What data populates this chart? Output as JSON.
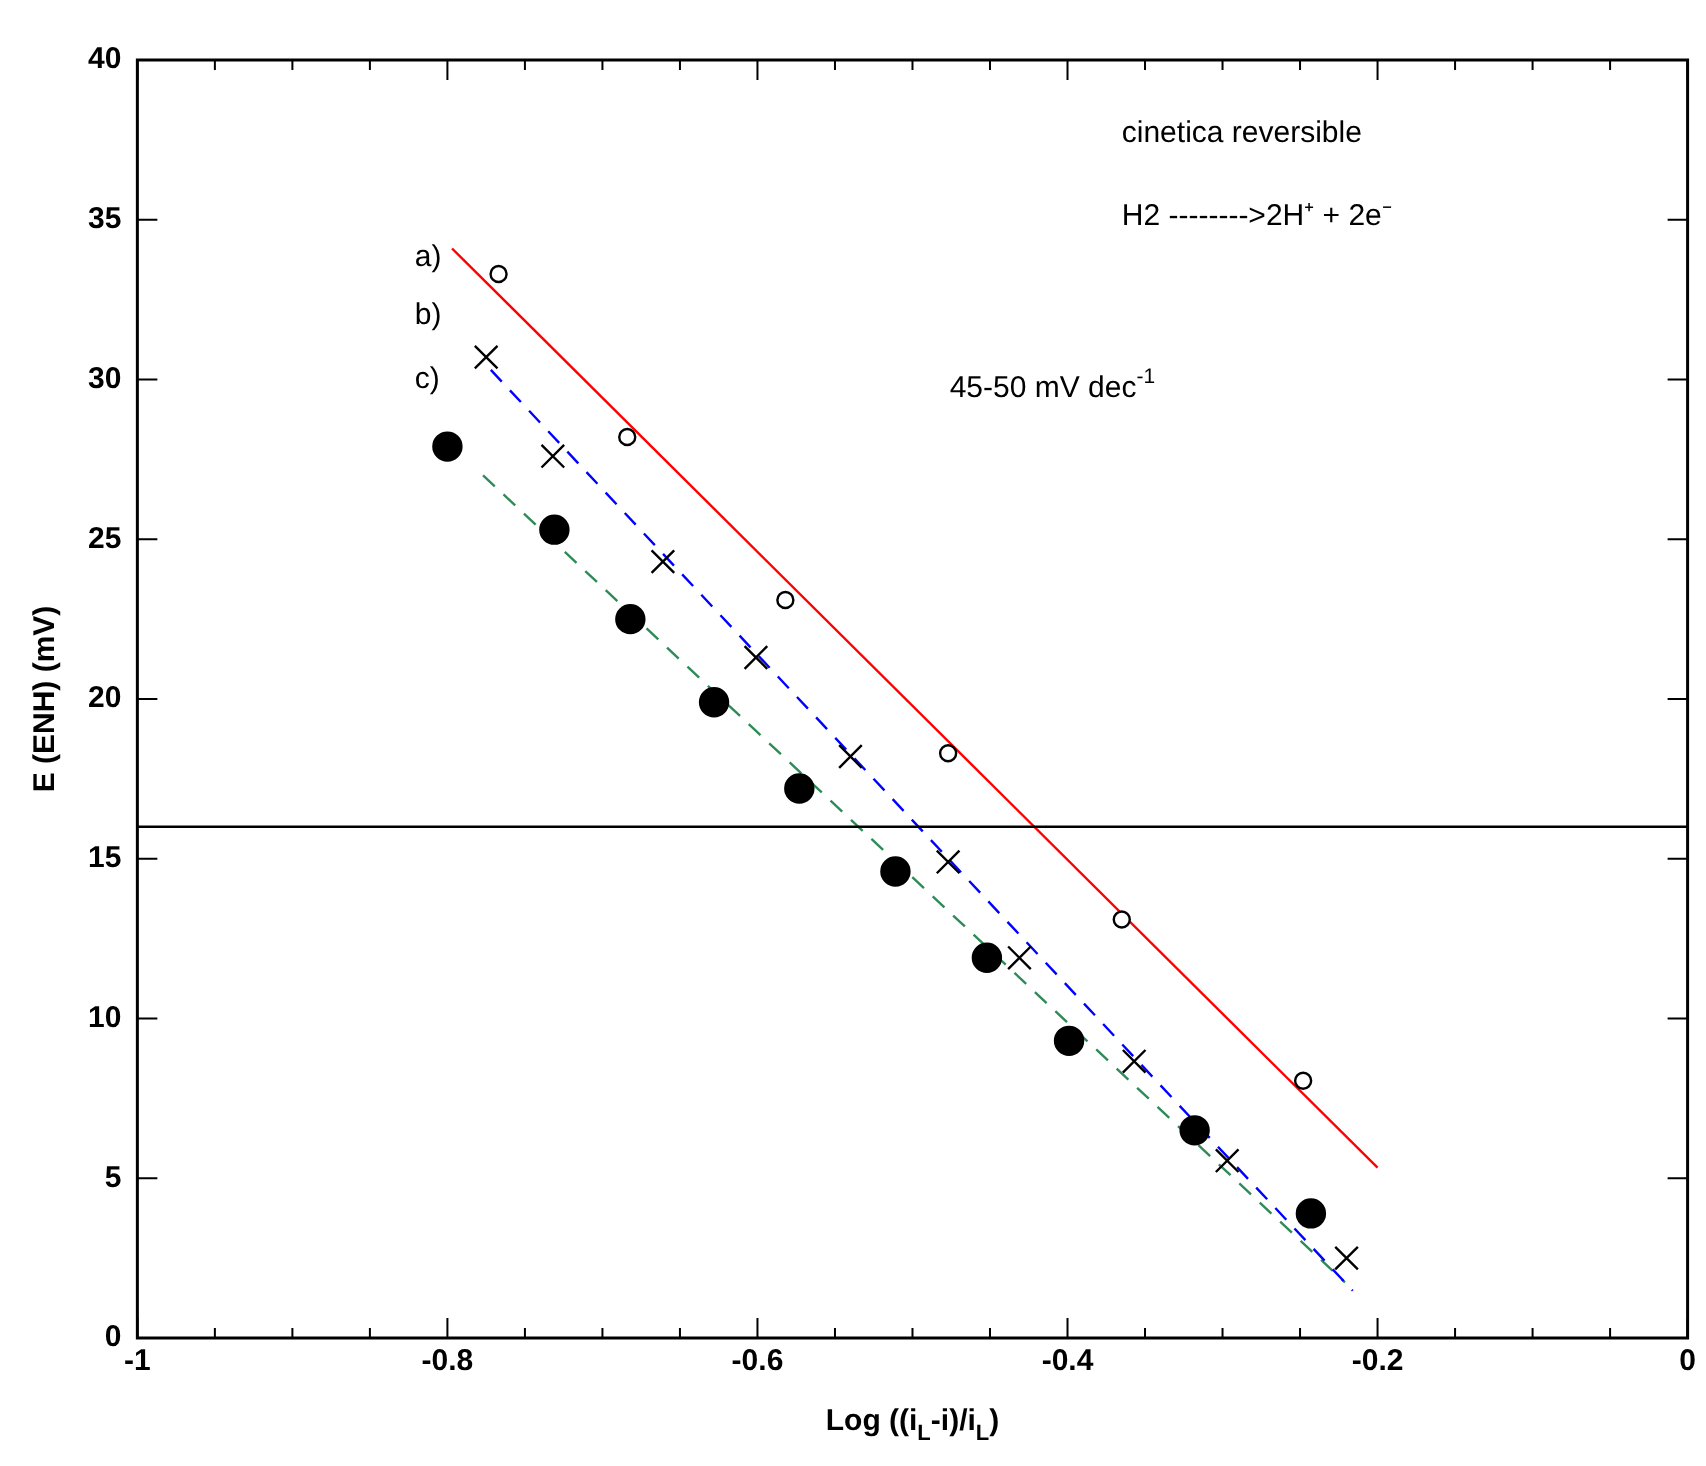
{
  "chart_data": {
    "type": "scatter",
    "xlabel": "Log ((i$_{L}$-i)/i$_{L}$)",
    "ylabel": "E (ENH) (mV)",
    "xlim": [
      -1,
      0
    ],
    "ylim": [
      0,
      40
    ],
    "xticks": [
      -1,
      {
        "value": -0.95,
        "label": null
      },
      {
        "value": -0.9,
        "label": null
      },
      {
        "value": -0.85,
        "label": null
      },
      -0.8,
      {
        "value": -0.75,
        "label": null
      },
      {
        "value": -0.7,
        "label": null
      },
      {
        "value": -0.65,
        "label": null
      },
      -0.6,
      {
        "value": -0.55,
        "label": null
      },
      {
        "value": -0.5,
        "label": null
      },
      {
        "value": -0.45,
        "label": null
      },
      -0.4,
      {
        "value": -0.35,
        "label": null
      },
      {
        "value": -0.3,
        "label": null
      },
      {
        "value": -0.25,
        "label": null
      },
      -0.2,
      {
        "value": -0.15,
        "label": null
      },
      {
        "value": -0.1,
        "label": null
      },
      {
        "value": -0.05,
        "label": null
      },
      0
    ],
    "yticks": [
      0,
      5,
      10,
      15,
      20,
      25,
      30,
      35,
      40
    ],
    "grid": false,
    "legend": false,
    "series": [
      {
        "type": "scatter",
        "marker": "circle",
        "color": "#000000",
        "x": [
          -0.767,
          -0.684,
          -0.582,
          -0.477,
          -0.365,
          -0.248
        ],
        "values": [
          33.3,
          28.2,
          23.1,
          18.3,
          13.1,
          8.05
        ]
      },
      {
        "type": "scatter",
        "marker": "cross",
        "color": "#000000",
        "x": [
          -0.775,
          -0.732,
          -0.661,
          -0.601,
          -0.54,
          -0.477,
          -0.431,
          -0.357,
          -0.297,
          -0.22
        ],
        "values": [
          30.7,
          27.6,
          24.3,
          21.3,
          18.2,
          14.9,
          11.9,
          8.66,
          5.55,
          2.5
        ]
      },
      {
        "type": "scatter",
        "marker": "circle",
        "color": "#000000",
        "x": [
          -0.8,
          -0.731,
          -0.682,
          -0.628,
          -0.573,
          -0.511,
          -0.452,
          -0.399,
          -0.318,
          -0.243
        ],
        "values": [
          27.9,
          25.3,
          22.5,
          19.9,
          17.2,
          14.6,
          11.9,
          9.3,
          6.5,
          3.9
        ]
      },
      {
        "type": "line",
        "marker": "none",
        "line_style": "solid",
        "color": "#ff0000",
        "x": [
          -0.797,
          -0.2
        ],
        "values": [
          34.1,
          5.33
        ]
      },
      {
        "type": "line",
        "marker": "none",
        "line_style": "dashed",
        "color": "#0000ff",
        "x": [
          -0.772,
          -0.216
        ],
        "values": [
          30.3,
          1.48
        ]
      },
      {
        "type": "line",
        "marker": "none",
        "line_style": "dashed",
        "color": "#2e8b57",
        "x": [
          -0.777,
          -0.221
        ],
        "values": [
          27.0,
          1.74
        ]
      }
    ],
    "ref_lines": [
      {
        "axis": "y",
        "value": 16,
        "color": "#000000"
      }
    ],
    "annotations": [
      "a)",
      "b)",
      "c)",
      "cinetica reversible",
      "H2 -------->2H⁺ + 2e⁻",
      "45-50 mV dec$^{-1}$"
    ]
  }
}
